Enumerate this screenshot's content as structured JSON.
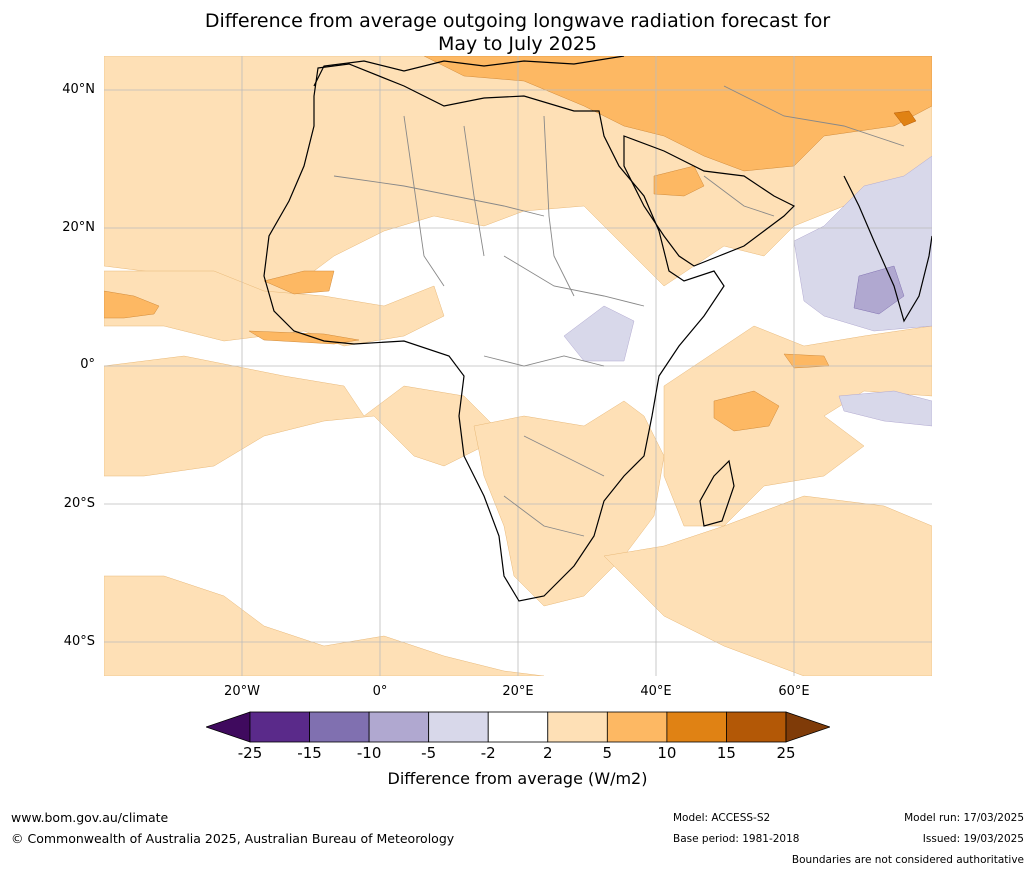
{
  "title": {
    "line1": "Difference from average outgoing longwave radiation forecast for",
    "line2": "May to July 2025"
  },
  "map": {
    "latitude_labels": [
      "40°N",
      "20°N",
      "0°",
      "20°S",
      "40°S"
    ],
    "longitude_labels": [
      "20°W",
      "0°",
      "20°E",
      "40°E",
      "60°E"
    ],
    "region": "Africa",
    "extent": {
      "lon_min": -40,
      "lon_max": 80,
      "lat_min": -45,
      "lat_max": 45
    }
  },
  "colorbar": {
    "title": "Difference from average (W/m2)",
    "ticks": [
      "-25",
      "-15",
      "-10",
      "-5",
      "-2",
      "2",
      "5",
      "10",
      "15",
      "25"
    ],
    "colors": [
      "#3f0a5e",
      "#5a2a8a",
      "#8070b0",
      "#b0a8d0",
      "#d8d8ea",
      "#ffffff",
      "#fee0b6",
      "#fdb863",
      "#e08214",
      "#b35806",
      "#7f3b08"
    ]
  },
  "footer": {
    "url": "www.bom.gov.au/climate",
    "copyright": "© Commonwealth of Australia 2025, Australian Bureau of Meteorology",
    "model": "Model: ACCESS-S2",
    "base_period": "Base period: 1981-2018",
    "model_run": "Model run: 17/03/2025",
    "issued": "Issued: 19/03/2025",
    "disclaimer": "Boundaries are not considered authoritative"
  }
}
